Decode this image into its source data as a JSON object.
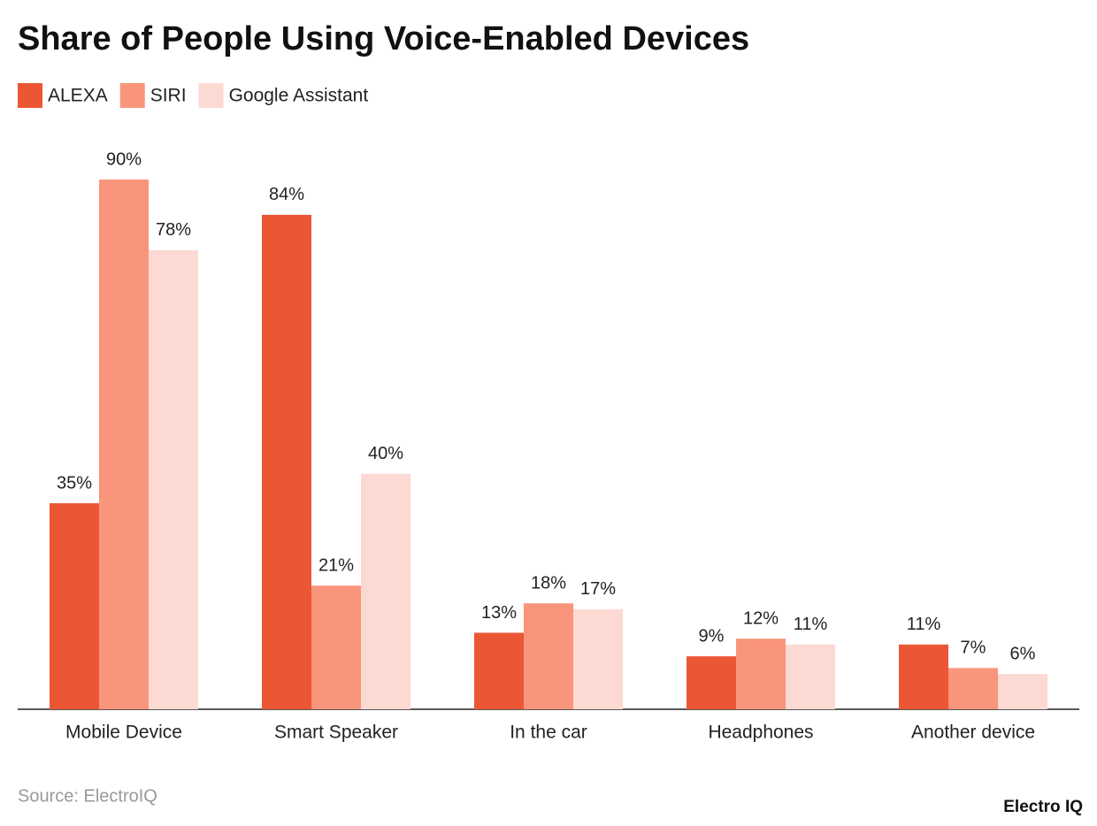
{
  "chart_data": {
    "type": "bar",
    "title": "Share of People Using Voice-Enabled Devices",
    "categories": [
      "Mobile Device",
      "Smart Speaker",
      "In the car",
      "Headphones",
      "Another device"
    ],
    "series": [
      {
        "name": "ALEXA",
        "color": "#eb5735",
        "values": [
          35,
          84,
          13,
          9,
          11
        ],
        "value_labels": [
          "35%",
          "84%",
          "13%",
          "9%",
          "11%"
        ]
      },
      {
        "name": "SIRI",
        "color": "#f9957b",
        "values": [
          90,
          21,
          18,
          12,
          7
        ],
        "value_labels": [
          "90%",
          "21%",
          "18%",
          "12%",
          "7%"
        ]
      },
      {
        "name": "Google Assistant",
        "color": "#fcd9d2",
        "values": [
          78,
          40,
          17,
          11,
          6
        ],
        "value_labels": [
          "78%",
          "40%",
          "17%",
          "11%",
          "6%"
        ]
      }
    ],
    "source": "Source: ElectroIQ",
    "brand": "Electro IQ"
  }
}
